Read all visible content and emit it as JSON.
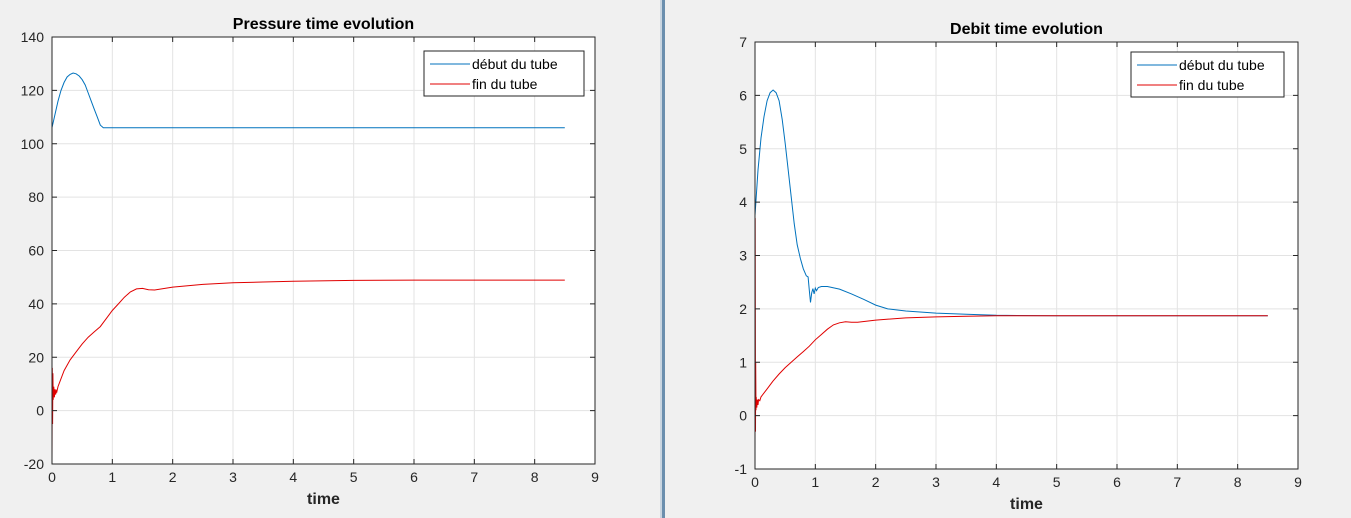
{
  "chart_data": [
    {
      "type": "line",
      "title": "Pressure time evolution",
      "xlabel": "time",
      "ylabel": "",
      "xlim": [
        0,
        9
      ],
      "ylim": [
        -20,
        140
      ],
      "xticks": [
        "0",
        "1",
        "2",
        "3",
        "4",
        "5",
        "6",
        "7",
        "8",
        "9"
      ],
      "yticks": [
        "-20",
        "0",
        "20",
        "40",
        "60",
        "80",
        "100",
        "120",
        "140"
      ],
      "grid": true,
      "legend_position": "top-right",
      "series": [
        {
          "name": "début du tube",
          "color": "#0072BD",
          "x": [
            0,
            0.05,
            0.1,
            0.15,
            0.2,
            0.25,
            0.3,
            0.35,
            0.4,
            0.45,
            0.5,
            0.55,
            0.6,
            0.65,
            0.7,
            0.75,
            0.8,
            0.85,
            1,
            2,
            3,
            4,
            5,
            6,
            7,
            8,
            8.5
          ],
          "y": [
            106,
            111,
            116,
            120,
            123,
            125,
            126,
            126.5,
            126.2,
            125.4,
            124,
            122,
            119,
            116,
            113,
            110,
            107,
            106,
            106,
            106,
            106,
            106,
            106,
            106,
            106,
            106,
            106
          ]
        },
        {
          "name": "fin du tube",
          "color": "#E00000",
          "x": [
            0,
            0.005,
            0.01,
            0.015,
            0.02,
            0.03,
            0.04,
            0.05,
            0.06,
            0.07,
            0.08,
            0.1,
            0.2,
            0.3,
            0.4,
            0.5,
            0.6,
            0.7,
            0.8,
            0.85,
            0.9,
            1.0,
            1.1,
            1.2,
            1.3,
            1.4,
            1.5,
            1.6,
            1.7,
            2,
            2.5,
            3,
            3.5,
            4,
            5,
            6,
            7,
            8,
            8.5
          ],
          "y": [
            -19,
            16,
            -5,
            14,
            4,
            9,
            5,
            8,
            6,
            7.5,
            7,
            9,
            15,
            19,
            22,
            25,
            27.5,
            29.5,
            31.5,
            33,
            34.5,
            37.5,
            40,
            42.5,
            44.5,
            45.6,
            45.8,
            45.3,
            45.2,
            46.3,
            47.3,
            47.9,
            48.2,
            48.5,
            48.8,
            48.9,
            48.9,
            48.9,
            48.9
          ]
        }
      ]
    },
    {
      "type": "line",
      "title": "Debit time evolution",
      "xlabel": "time",
      "ylabel": "",
      "xlim": [
        0,
        9
      ],
      "ylim": [
        -1,
        7
      ],
      "xticks": [
        "0",
        "1",
        "2",
        "3",
        "4",
        "5",
        "6",
        "7",
        "8",
        "9"
      ],
      "yticks": [
        "-1",
        "0",
        "1",
        "2",
        "3",
        "4",
        "5",
        "6",
        "7"
      ],
      "grid": true,
      "legend_position": "top-right",
      "series": [
        {
          "name": "début du tube",
          "color": "#0072BD",
          "x": [
            0,
            0.05,
            0.1,
            0.15,
            0.2,
            0.25,
            0.3,
            0.35,
            0.4,
            0.45,
            0.5,
            0.55,
            0.6,
            0.65,
            0.7,
            0.75,
            0.8,
            0.85,
            0.88,
            0.9,
            0.92,
            0.94,
            0.96,
            0.98,
            1.0,
            1.02,
            1.05,
            1.1,
            1.2,
            1.4,
            1.6,
            1.8,
            2.0,
            2.2,
            2.5,
            3,
            3.5,
            4,
            5,
            6,
            7,
            8,
            8.5
          ],
          "y": [
            3.75,
            4.6,
            5.2,
            5.6,
            5.9,
            6.05,
            6.1,
            6.05,
            5.9,
            5.55,
            5.1,
            4.6,
            4.1,
            3.6,
            3.2,
            2.95,
            2.75,
            2.62,
            2.6,
            2.35,
            2.12,
            2.3,
            2.38,
            2.28,
            2.39,
            2.34,
            2.4,
            2.42,
            2.42,
            2.37,
            2.28,
            2.18,
            2.07,
            2.0,
            1.96,
            1.92,
            1.9,
            1.88,
            1.87,
            1.87,
            1.87,
            1.87,
            1.87
          ]
        },
        {
          "name": "fin du tube",
          "color": "#E00000",
          "x": [
            0,
            0.004,
            0.008,
            0.012,
            0.016,
            0.02,
            0.03,
            0.04,
            0.05,
            0.06,
            0.08,
            0.1,
            0.2,
            0.3,
            0.4,
            0.5,
            0.6,
            0.7,
            0.8,
            0.9,
            1.0,
            1.1,
            1.2,
            1.3,
            1.4,
            1.5,
            1.6,
            1.7,
            2,
            2.5,
            3,
            3.5,
            4,
            5,
            6,
            7,
            8,
            8.5
          ],
          "y": [
            -0.85,
            3.7,
            -0.3,
            1.0,
            0.1,
            0.35,
            0.15,
            0.3,
            0.2,
            0.3,
            0.28,
            0.35,
            0.5,
            0.65,
            0.78,
            0.9,
            1.0,
            1.1,
            1.2,
            1.3,
            1.42,
            1.52,
            1.62,
            1.7,
            1.74,
            1.76,
            1.75,
            1.75,
            1.79,
            1.83,
            1.85,
            1.86,
            1.87,
            1.87,
            1.87,
            1.87,
            1.87,
            1.87
          ]
        }
      ]
    }
  ]
}
